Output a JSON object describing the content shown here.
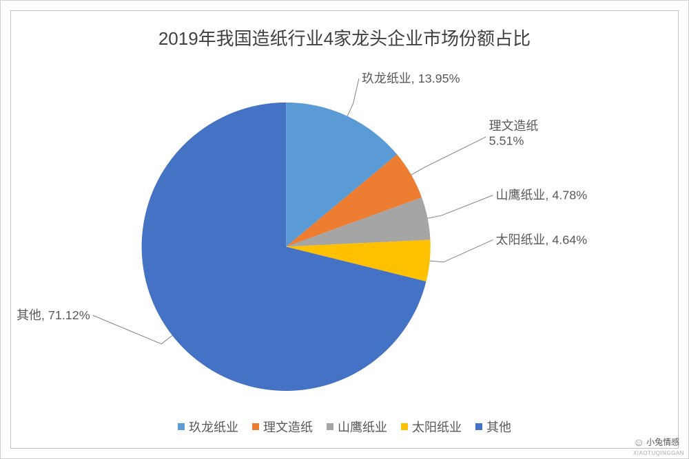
{
  "chart": {
    "type": "pie",
    "title": "2019年我国造纸行业4家龙头企业市场份额占比",
    "title_fontsize": 26,
    "title_color": "#404040",
    "background_color": "#ffffff",
    "border_color": "#bfbfbf",
    "slices": [
      {
        "label": "玖龙纸业",
        "value": 13.95,
        "color": "#5b9bd5",
        "display": "玖龙纸业, 13.95%"
      },
      {
        "label": "理文造纸",
        "value": 5.51,
        "color": "#ed7d31",
        "display_line1": "理文造纸",
        "display_line2": "5.51%"
      },
      {
        "label": "山鹰纸业",
        "value": 4.78,
        "color": "#a5a5a5",
        "display": "山鹰纸业, 4.78%"
      },
      {
        "label": "太阳纸业",
        "value": 4.64,
        "color": "#ffc000",
        "display": "太阳纸业, 4.64%"
      },
      {
        "label": "其他",
        "value": 71.12,
        "color": "#4472c4",
        "display": "其他, 71.12%"
      }
    ],
    "start_angle_deg": -90,
    "label_fontsize": 18,
    "label_color": "#595959",
    "leader_color": "#808080",
    "legend": {
      "position": "bottom",
      "fontsize": 18,
      "color": "#595959",
      "items": [
        {
          "label": "玖龙纸业",
          "color": "#5b9bd5"
        },
        {
          "label": "理文造纸",
          "color": "#ed7d31"
        },
        {
          "label": "山鹰纸业",
          "color": "#a5a5a5"
        },
        {
          "label": "太阳纸业",
          "color": "#ffc000"
        },
        {
          "label": "其他",
          "color": "#4472c4"
        }
      ]
    }
  },
  "watermark": {
    "cn": "小兔情感",
    "pinyin": "XIAOTUQINGGAN"
  }
}
